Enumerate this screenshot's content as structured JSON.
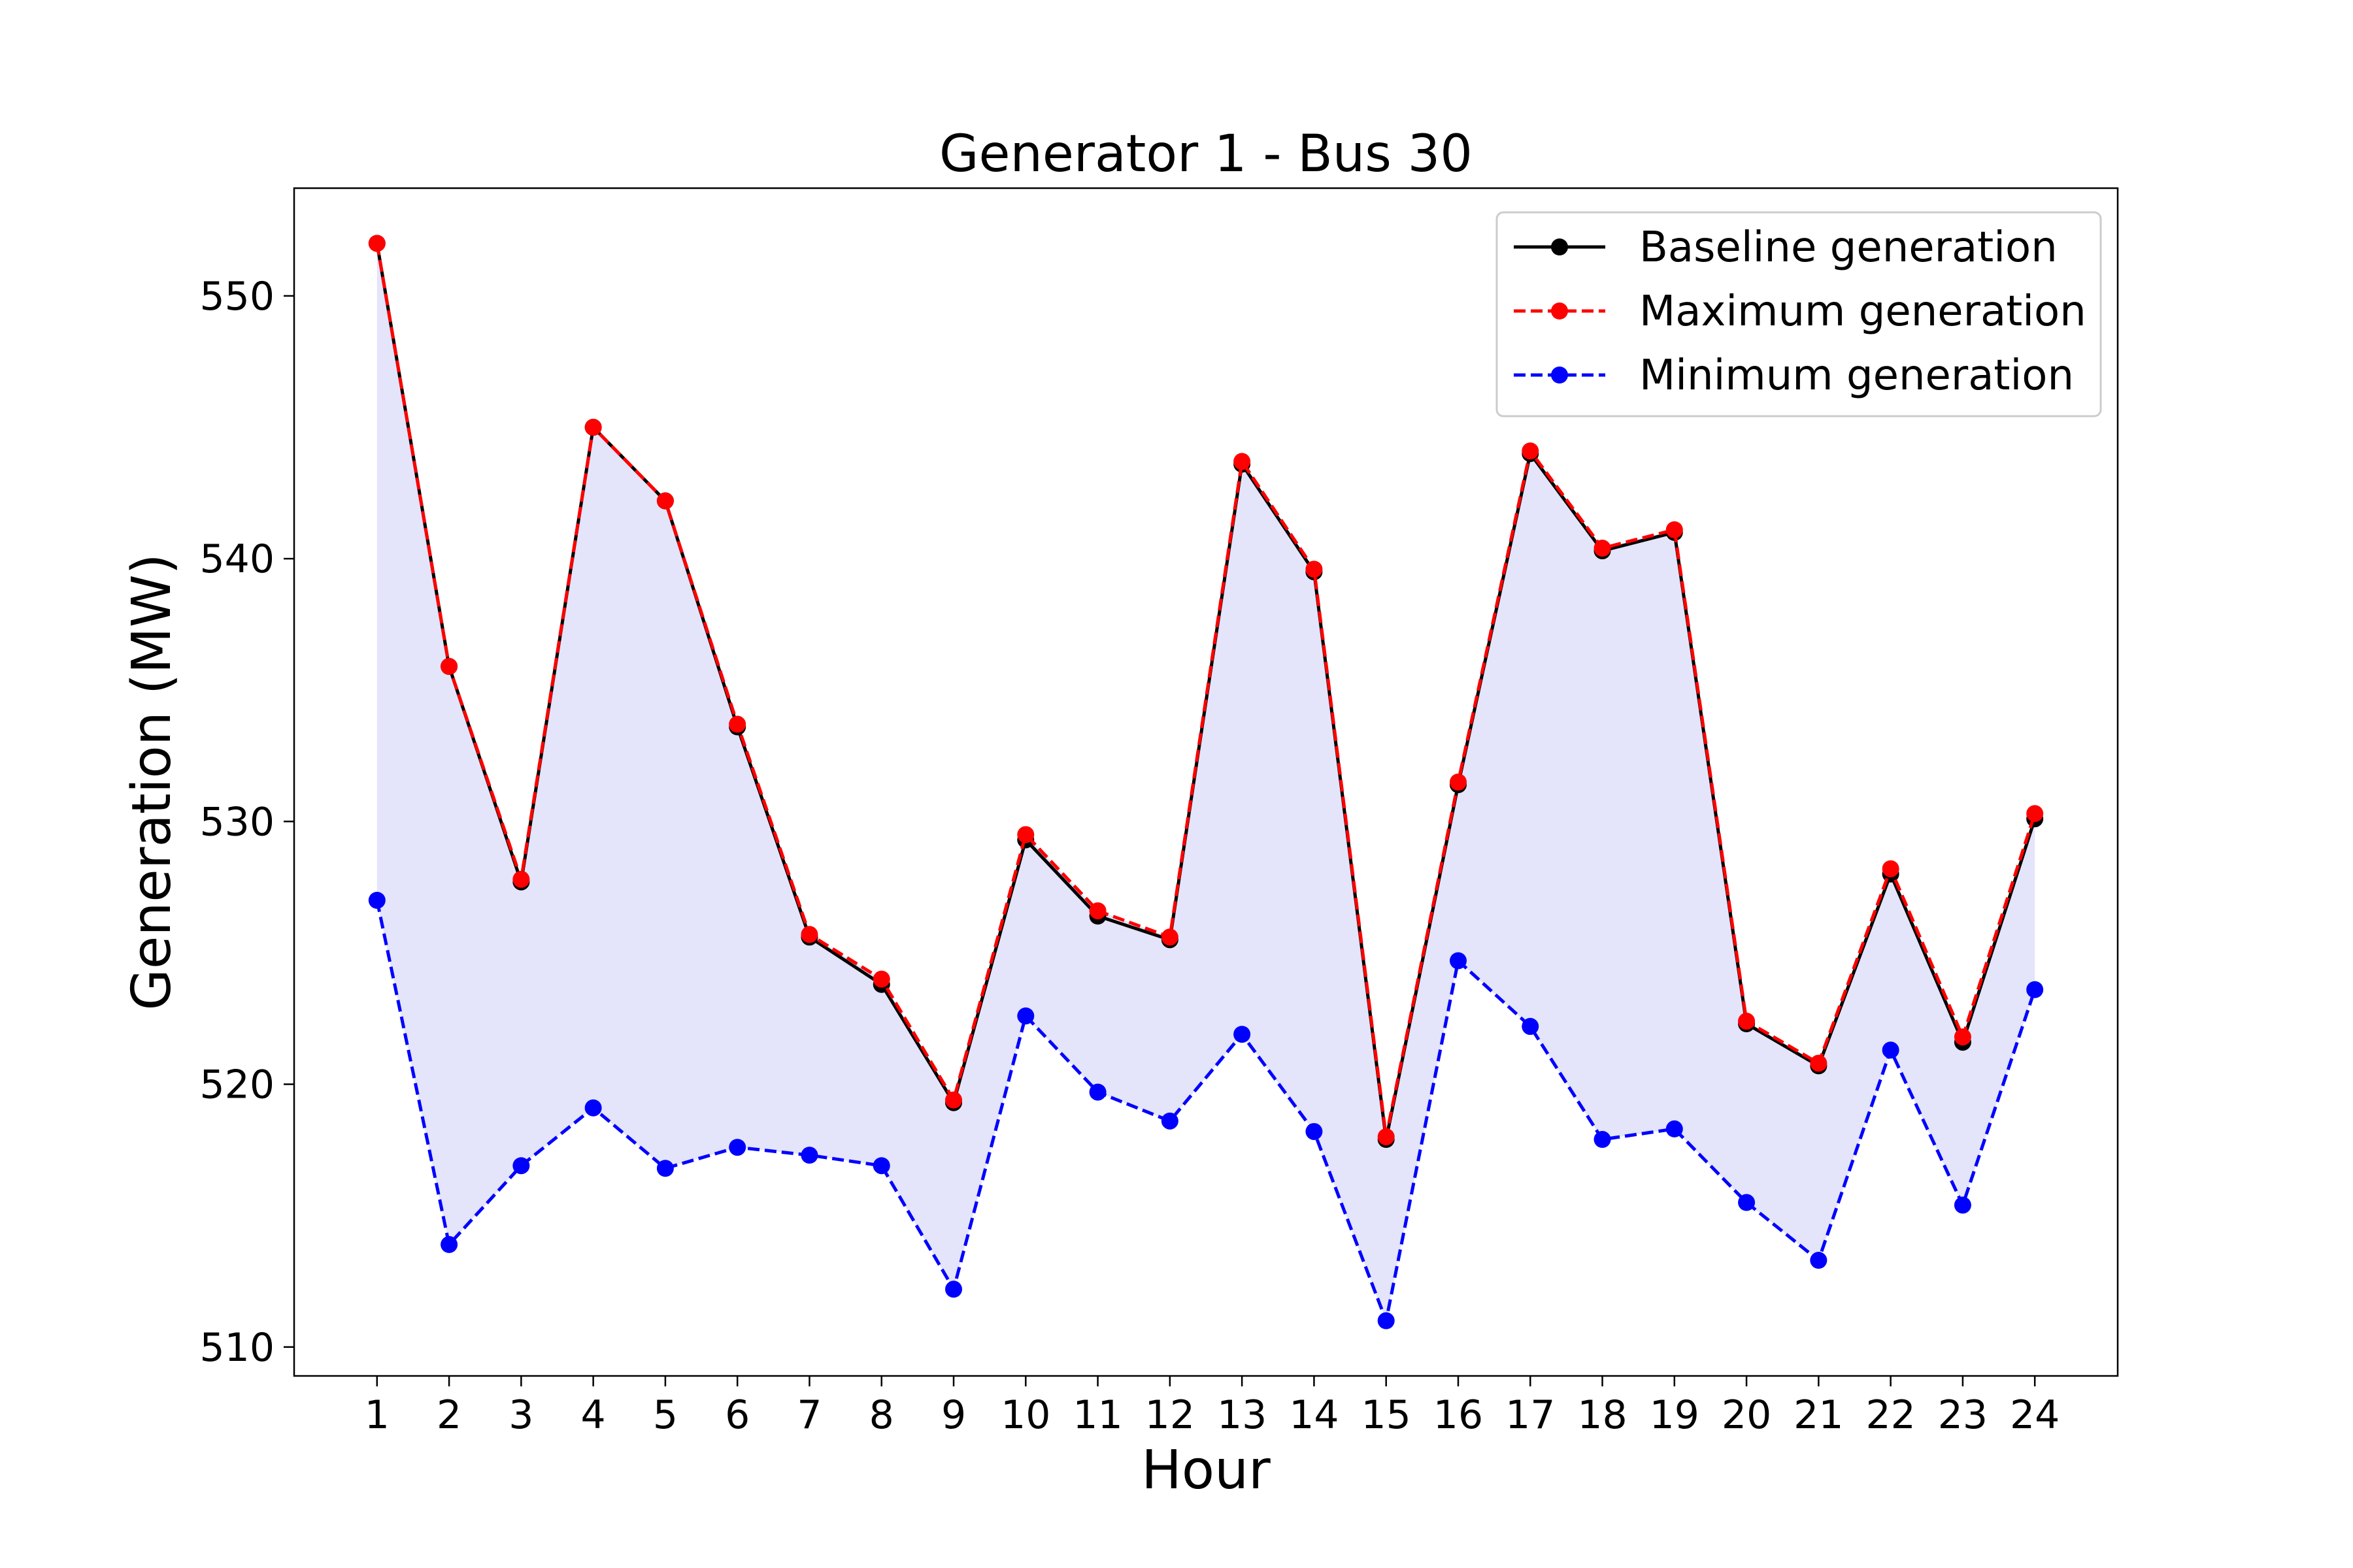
{
  "chart_data": {
    "type": "line",
    "title": "Generator 1 - Bus 30",
    "xlabel": "Hour",
    "ylabel": "Generation (MW)",
    "x": [
      1,
      2,
      3,
      4,
      5,
      6,
      7,
      8,
      9,
      10,
      11,
      12,
      13,
      14,
      15,
      16,
      17,
      18,
      19,
      20,
      21,
      22,
      23,
      24
    ],
    "xticks": [
      "1",
      "2",
      "3",
      "4",
      "5",
      "6",
      "7",
      "8",
      "9",
      "10",
      "11",
      "12",
      "13",
      "14",
      "15",
      "16",
      "17",
      "18",
      "19",
      "20",
      "21",
      "22",
      "23",
      "24"
    ],
    "yticks": [
      "510",
      "520",
      "530",
      "540",
      "550"
    ],
    "xlim": [
      -0.15,
      25.15
    ],
    "ylim": [
      508.9,
      554.1
    ],
    "grid": false,
    "legend_position": "top-right",
    "fill_between": {
      "lower": "Minimum generation",
      "upper": "Maximum generation",
      "color": "#e4e4fa"
    },
    "series": [
      {
        "name": "Baseline generation",
        "color": "#000000",
        "linestyle": "solid",
        "values": [
          552.0,
          535.9,
          527.7,
          545.0,
          542.2,
          533.6,
          525.6,
          523.8,
          519.3,
          529.3,
          526.4,
          525.5,
          543.6,
          539.5,
          517.9,
          531.4,
          544.0,
          540.3,
          541.0,
          522.3,
          520.7,
          528.0,
          521.6,
          530.1
        ]
      },
      {
        "name": "Maximum generation",
        "color": "#ff0000",
        "linestyle": "dashed",
        "values": [
          552.0,
          535.9,
          527.8,
          545.0,
          542.2,
          533.7,
          525.7,
          524.0,
          519.4,
          529.5,
          526.6,
          525.6,
          543.7,
          539.6,
          518.0,
          531.5,
          544.1,
          540.4,
          541.1,
          522.4,
          520.8,
          528.2,
          521.8,
          530.3
        ]
      },
      {
        "name": "Minimum generation",
        "color": "#0000ff",
        "linestyle": "dashed",
        "values": [
          527.0,
          513.9,
          516.9,
          519.1,
          516.8,
          517.6,
          517.3,
          516.9,
          512.2,
          522.6,
          519.7,
          518.6,
          521.9,
          518.2,
          511.0,
          524.7,
          522.2,
          517.9,
          518.3,
          515.5,
          513.3,
          521.3,
          515.4,
          523.6
        ]
      }
    ]
  }
}
